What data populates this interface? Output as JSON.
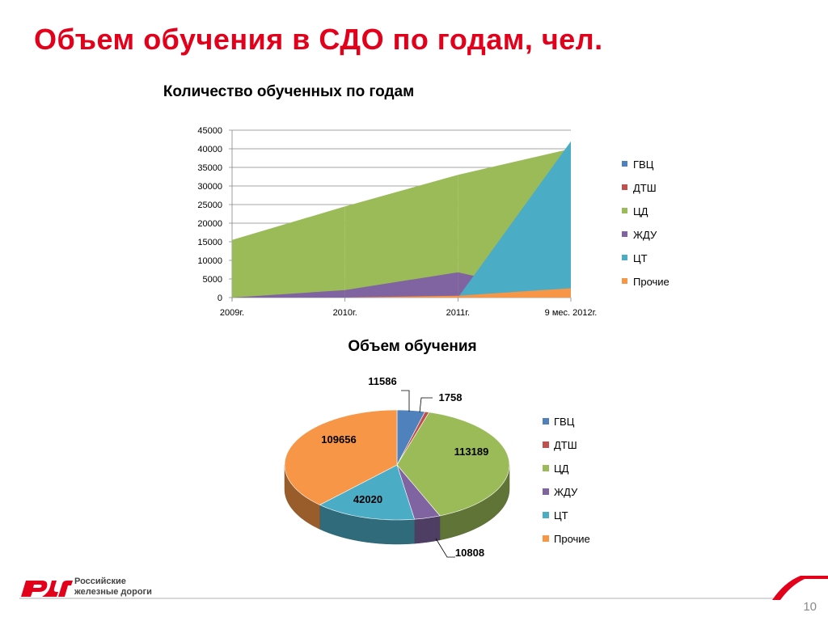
{
  "slide": {
    "title": "Объем обучения в СДО по годам, чел.",
    "page_number": "10",
    "logo_line1": "Российские",
    "logo_line2": "железные дороги"
  },
  "colors": {
    "ГВЦ": "#4f81bd",
    "ДТШ": "#c0504d",
    "ЦД": "#9bbb59",
    "ЖДУ": "#8064a2",
    "ЦТ": "#4bacc6",
    "Прочие": "#f79646",
    "title_red": "#e3001b"
  },
  "chart_data": [
    {
      "type": "area",
      "title": "Количество обученных по годам",
      "categories": [
        "2009г.",
        "2010г.",
        "2011г.",
        "9 мес. 2012г."
      ],
      "ylim": [
        0,
        45000
      ],
      "yticks": [
        0,
        5000,
        10000,
        15000,
        20000,
        25000,
        30000,
        35000,
        40000,
        45000
      ],
      "grid": true,
      "legend": "right",
      "series": [
        {
          "name": "ГВЦ",
          "values": [
            0,
            0,
            0,
            0
          ]
        },
        {
          "name": "ДТШ",
          "values": [
            0,
            0,
            0,
            0
          ]
        },
        {
          "name": "ЦД",
          "values": [
            15500,
            24500,
            33000,
            40000
          ]
        },
        {
          "name": "ЖДУ",
          "values": [
            0,
            2000,
            6800,
            0
          ]
        },
        {
          "name": "ЦТ",
          "values": [
            0,
            0,
            0,
            42000
          ]
        },
        {
          "name": "Прочие",
          "values": [
            0,
            0,
            500,
            2500
          ]
        }
      ]
    },
    {
      "type": "pie",
      "title": "Объем обучения",
      "legend": "right",
      "labels": [
        "ГВЦ",
        "ДТШ",
        "ЦД",
        "ЖДУ",
        "ЦТ",
        "Прочие"
      ],
      "values": [
        11586,
        1758,
        113189,
        10808,
        42020,
        109656
      ]
    }
  ]
}
